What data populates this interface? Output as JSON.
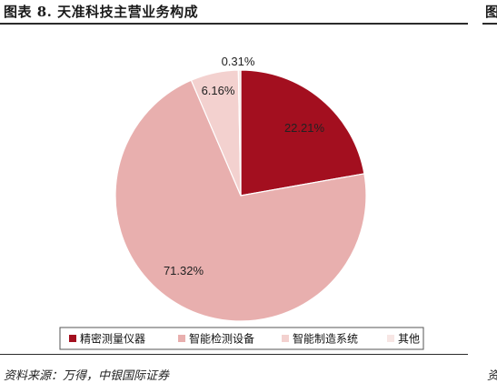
{
  "header": {
    "title": "图表 8. 天准科技主营业务构成",
    "side_title": "图"
  },
  "footer": {
    "source": "资料来源：万得，中银国际证券",
    "side_source": "资"
  },
  "colors": {
    "precision_instruments": "#a30f1f",
    "intelligent_inspection": "#e8afae",
    "intelligent_manufacturing": "#f3d1cf",
    "other": "#f7e6e4"
  },
  "chart_data": {
    "type": "pie",
    "title": "天准科技主营业务构成",
    "start_angle_deg": 0,
    "direction": "clockwise",
    "slices": [
      {
        "name": "精密测量仪器",
        "value": 22.21,
        "label": "22.21%",
        "color": "#a30f1f"
      },
      {
        "name": "智能检测设备",
        "value": 71.32,
        "label": "71.32%",
        "color": "#e8afae"
      },
      {
        "name": "智能制造系统",
        "value": 6.16,
        "label": "6.16%",
        "color": "#f3d1cf"
      },
      {
        "name": "其他",
        "value": 0.31,
        "label": "0.31%",
        "color": "#f7e6e4"
      }
    ],
    "legend_position": "bottom"
  }
}
